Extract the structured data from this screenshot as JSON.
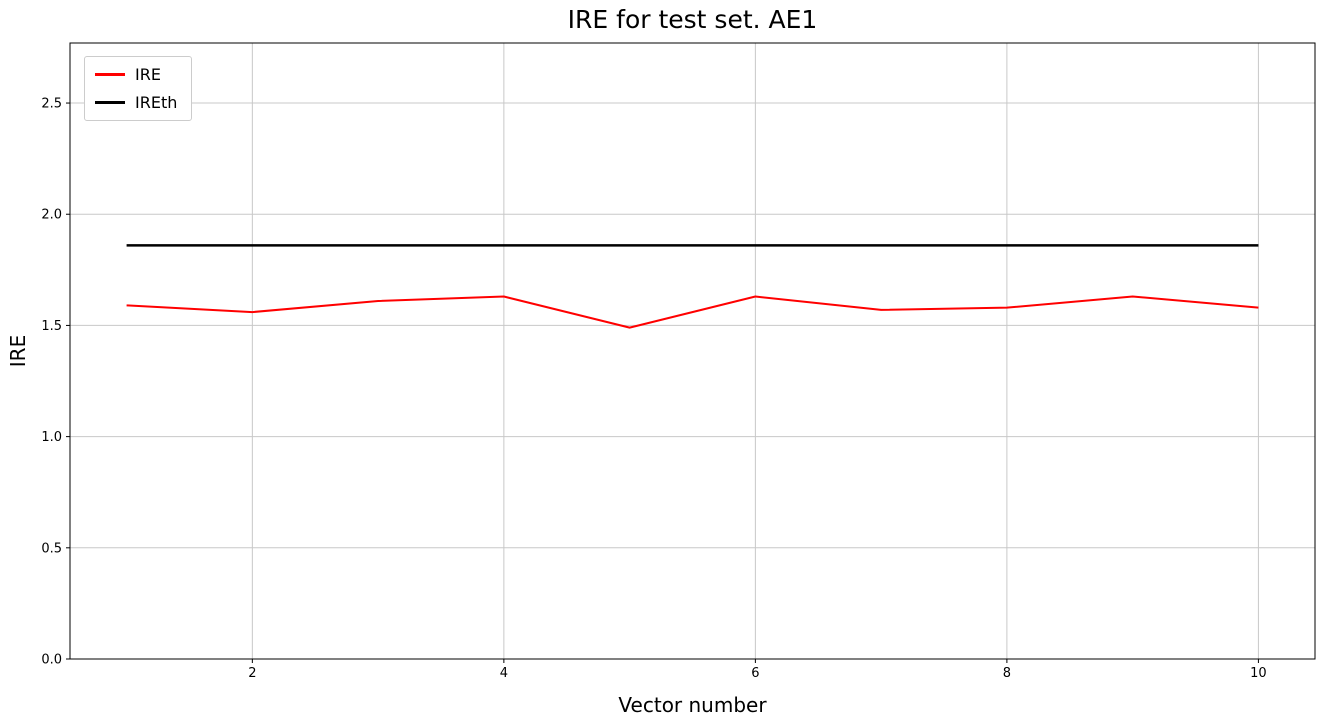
{
  "figure": {
    "title": "IRE for test set. AE1",
    "xlabel": "Vector number",
    "ylabel": "IRE"
  },
  "legend": {
    "items": [
      {
        "label": "IRE",
        "color": "#ff0000"
      },
      {
        "label": "IREth",
        "color": "#000000"
      }
    ]
  },
  "chart_data": {
    "type": "line",
    "title": "IRE for test set. AE1",
    "xlabel": "Vector number",
    "ylabel": "IRE",
    "x": [
      1,
      2,
      3,
      4,
      5,
      6,
      7,
      8,
      9,
      10
    ],
    "series": [
      {
        "name": "IRE",
        "color": "#ff0000",
        "width": 2,
        "values": [
          1.59,
          1.56,
          1.61,
          1.63,
          1.49,
          1.63,
          1.57,
          1.58,
          1.63,
          1.58
        ]
      },
      {
        "name": "IREth",
        "color": "#000000",
        "width": 2.5,
        "values": [
          1.86,
          1.86,
          1.86,
          1.86,
          1.86,
          1.86,
          1.86,
          1.86,
          1.86,
          1.86
        ]
      }
    ],
    "xtick_values": [
      2,
      4,
      6,
      8,
      10
    ],
    "xtick_labels": [
      "2",
      "4",
      "6",
      "8",
      "10"
    ],
    "ytick_values": [
      0.0,
      0.5,
      1.0,
      1.5,
      2.0,
      2.5
    ],
    "ytick_labels": [
      "0.0",
      "0.5",
      "1.0",
      "1.5",
      "2.0",
      "2.5"
    ],
    "xlim": [
      0.55,
      10.45
    ],
    "ylim": [
      0,
      2.77
    ],
    "grid": true,
    "grid_color": "#c8c8c8",
    "legend_position": "upper left"
  }
}
